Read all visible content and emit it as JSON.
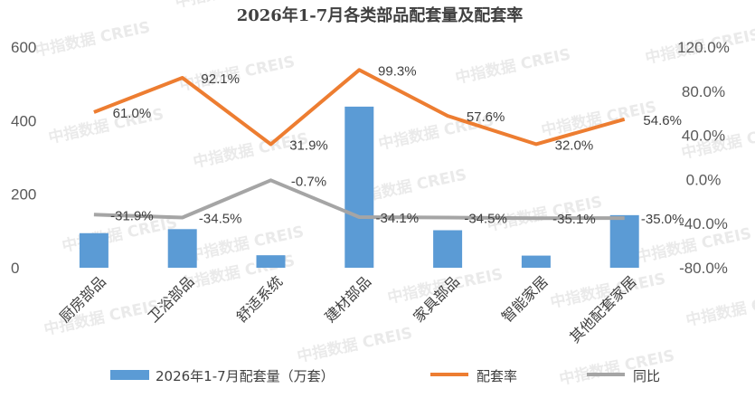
{
  "watermark": "中指数据 CREIS",
  "colors": {
    "bar": "#5b9bd5",
    "rate": "#ed7d31",
    "yoy": "#a5a5a5",
    "text": "#404040",
    "tick": "#595959"
  },
  "chart_data": {
    "type": "bar",
    "title": "2026年1-7月各类部品配套量及配套率",
    "categories": [
      "厨房部品",
      "卫浴部品",
      "舒适系统",
      "建材部品",
      "家具部品",
      "智能家居",
      "其他配套家居"
    ],
    "xlabel": "",
    "ylabel": "",
    "ylim": [
      0,
      600
    ],
    "y2lim": [
      -80,
      120
    ],
    "y_ticks": [
      "600",
      "400",
      "200",
      "0"
    ],
    "y2_ticks": [
      "120.0%",
      "80.0%",
      "40.0%",
      "0.0%",
      "-40.0%",
      "-80.0%"
    ],
    "legend_position": "bottom",
    "grid": false,
    "series": [
      {
        "name": "2026年1-7月配套量（万套）",
        "type": "bar",
        "axis": "left",
        "values": [
          94,
          105,
          34,
          438,
          102,
          33,
          143
        ]
      },
      {
        "name": "配套率",
        "type": "line",
        "axis": "right",
        "values": [
          61.0,
          92.1,
          31.9,
          99.3,
          57.6,
          32.0,
          54.6
        ],
        "labels": [
          "61.0%",
          "92.1%",
          "31.9%",
          "99.3%",
          "57.6%",
          "32.0%",
          "54.6%"
        ]
      },
      {
        "name": "同比",
        "type": "line",
        "axis": "right",
        "values": [
          -31.9,
          -34.5,
          -0.7,
          -34.1,
          -34.5,
          -35.1,
          -35.0
        ],
        "labels": [
          "-31.9%",
          "-34.5%",
          "-0.7%",
          "-34.1%",
          "-34.5%",
          "-35.1%",
          "-35.0%"
        ]
      }
    ]
  }
}
